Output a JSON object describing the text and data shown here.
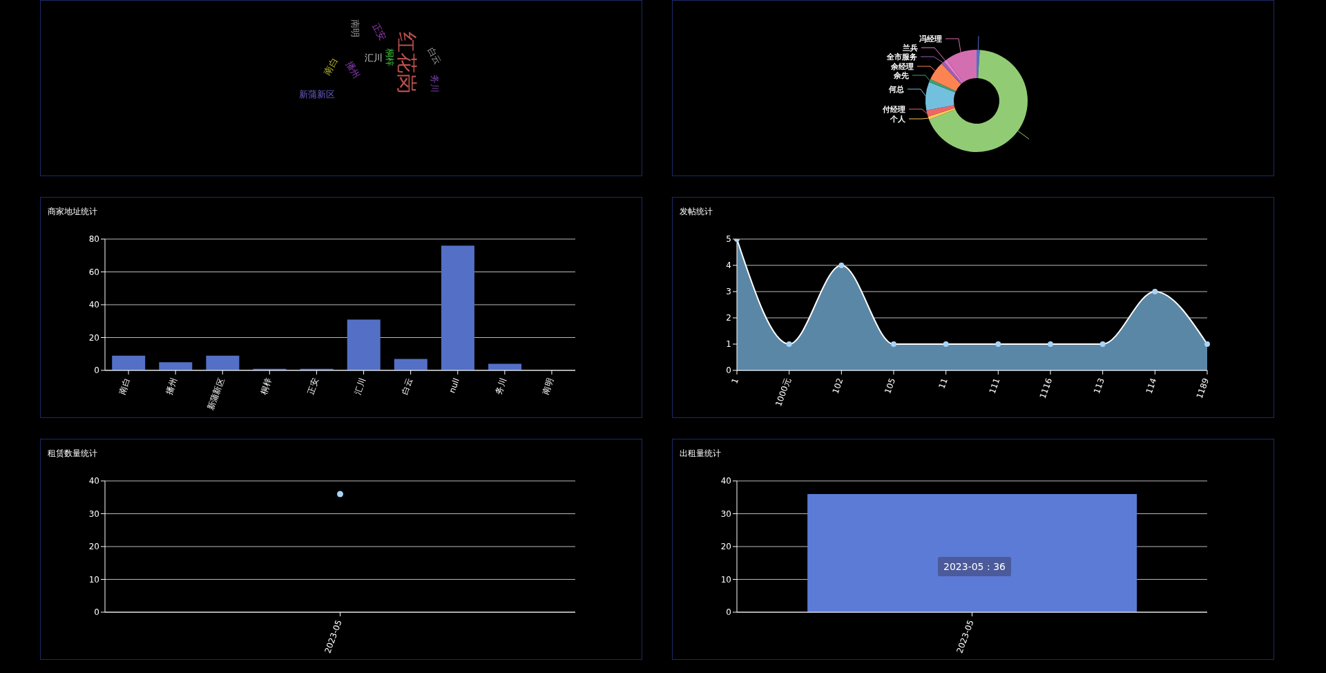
{
  "chart_data": [
    {
      "type": "other",
      "categories": [
        "红花岗",
        "汇川",
        "南白",
        "播州",
        "新蒲新区",
        "桐梓",
        "正安",
        "白云",
        "务川",
        "南明"
      ],
      "colors": [
        "#b9504c",
        "#d9d9d9",
        "#b8b82a",
        "#8c3fb5",
        "#6a5fcf",
        "#3fbf3f",
        "#9a3fbf",
        "#9a9a9a",
        "#7a3fa5",
        "#a0a0a0"
      ]
    },
    {
      "type": "donut",
      "categories": [
        null,
        null,
        "个人",
        "付经理",
        "何总",
        "余先",
        "余经理",
        "全市服务",
        "兰兵",
        "冯经理"
      ],
      "values": [
        1,
        68,
        1,
        2,
        9,
        1,
        6,
        1,
        1,
        10
      ],
      "colors": [
        "#5470c6",
        "#91cc75",
        "#fac858",
        "#ee6666",
        "#73c0de",
        "#3ba272",
        "#fc8452",
        "#9a60b4",
        "#ea7ccc",
        "#d36fb0"
      ]
    },
    {
      "type": "bar",
      "title": "商家地址统计",
      "categories": [
        "南白",
        "播州",
        "新蒲新区",
        "桐梓",
        "正安",
        "汇川",
        "白云",
        "null",
        "务川",
        "南明"
      ],
      "values": [
        9,
        5,
        9,
        1,
        1,
        31,
        7,
        76,
        4,
        0
      ],
      "color": "#5470c6",
      "ylim": [
        0,
        80
      ],
      "yticks": [
        0,
        20,
        40,
        60,
        80
      ],
      "grid": "y"
    },
    {
      "type": "area",
      "title": "发帖统计",
      "categories": [
        "1",
        "1000元",
        "102",
        "105",
        "11",
        "111",
        "1116",
        "113",
        "114",
        "1189"
      ],
      "values": [
        5,
        1,
        4,
        1,
        1,
        1,
        1,
        1,
        3,
        1
      ],
      "color": "#5a87a6",
      "marker": "circle",
      "ylim": [
        0,
        5
      ],
      "yticks": [
        0,
        1,
        2,
        3,
        4,
        5
      ],
      "grid": "y"
    },
    {
      "type": "scatter",
      "title": "租赁数量统计",
      "categories": [
        "2023-05"
      ],
      "values": [
        36
      ],
      "color": "#a9d3f5",
      "marker": "circle",
      "ylim": [
        0,
        40
      ],
      "yticks": [
        0,
        10,
        20,
        30,
        40
      ],
      "grid": "y"
    },
    {
      "type": "bar",
      "title": "出租量统计",
      "categories": [
        "2023-05"
      ],
      "values": [
        36
      ],
      "color": "#5b7bd6",
      "ylim": [
        0,
        40
      ],
      "yticks": [
        0,
        10,
        20,
        30,
        40
      ],
      "grid": "y",
      "annotations": [
        "2023-05 : 36"
      ]
    }
  ]
}
